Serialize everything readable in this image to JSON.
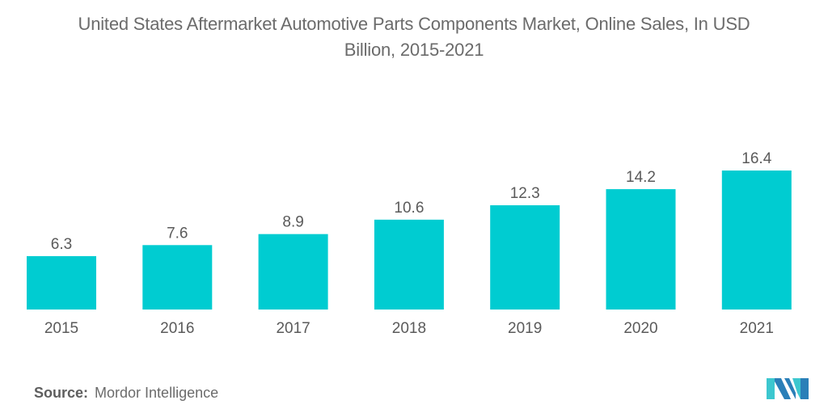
{
  "chart_data": {
    "type": "bar",
    "title": "United States Aftermarket Automotive Parts Components Market, Online Sales, In USD Billion, 2015-2021",
    "title_lines": [
      "United States Aftermarket Automotive Parts Components Market, Online Sales, In USD",
      "Billion, 2015-2021"
    ],
    "categories": [
      "2015",
      "2016",
      "2017",
      "2018",
      "2019",
      "2020",
      "2021"
    ],
    "values": [
      6.3,
      7.6,
      8.9,
      10.6,
      12.3,
      14.2,
      16.4
    ],
    "data_labels": [
      "6.3",
      "7.6",
      "8.9",
      "10.6",
      "12.3",
      "14.2",
      "16.4"
    ],
    "xlabel": "",
    "ylabel": "",
    "ylim": [
      0,
      16.4
    ],
    "grid": false,
    "legend": "none",
    "bar_color": "#00ccd1"
  },
  "footer": {
    "source_label": "Source:",
    "source_value": "Mordor Intelligence",
    "logo": "mordor-intelligence-logo-icon"
  },
  "colors": {
    "text": "#6b6b6b",
    "logo_dark": "#2a7fb8",
    "logo_light": "#3cc7cf"
  }
}
